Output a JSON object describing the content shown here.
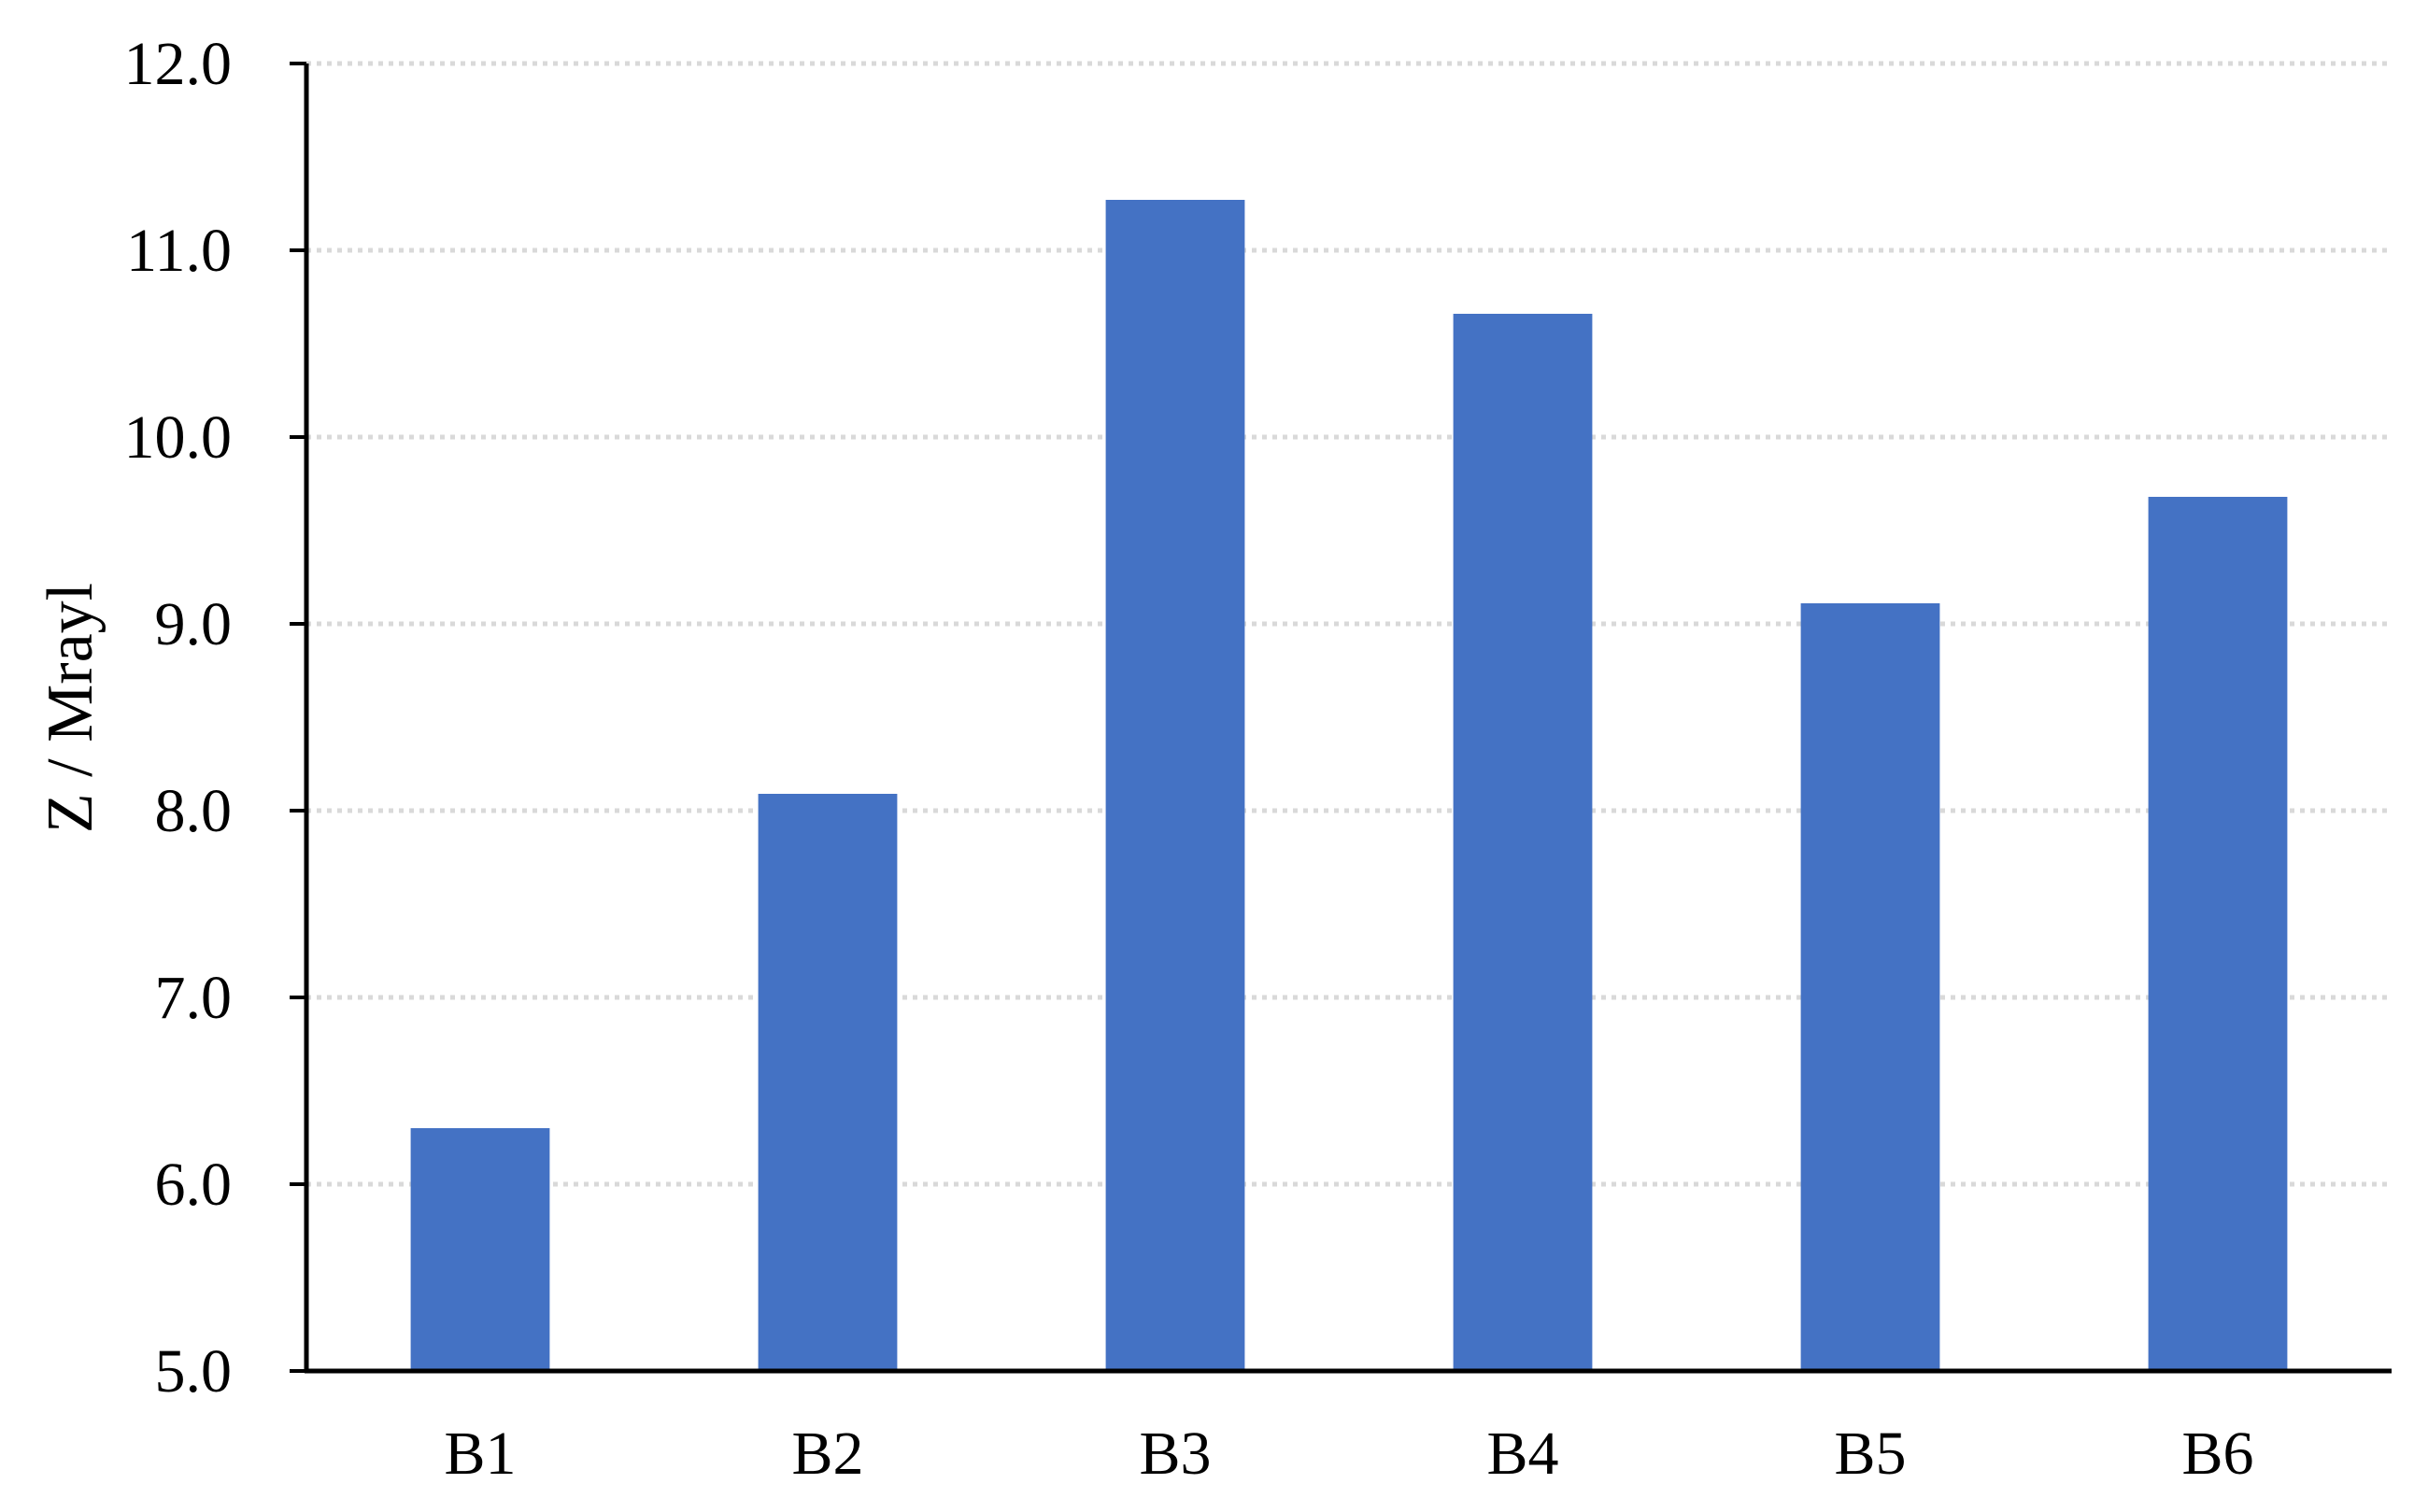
{
  "chart_data": {
    "type": "bar",
    "title": "",
    "xlabel": "",
    "ylabel": "Z / Mrayl",
    "categories": [
      "B1",
      "B2",
      "B3",
      "B4",
      "B5",
      "B6"
    ],
    "values": [
      6.3,
      8.09,
      11.27,
      10.66,
      9.11,
      9.68
    ],
    "ylim": [
      5.0,
      12.0
    ],
    "yticks": [
      "5.0",
      "6.0",
      "7.0",
      "8.0",
      "9.0",
      "10.0",
      "11.0",
      "12.0"
    ],
    "grid": "horizontal dotted",
    "legend": "none",
    "bar_color": "#4472C4",
    "grid_color": "#D9D9D9",
    "axis_color": "#000000"
  }
}
